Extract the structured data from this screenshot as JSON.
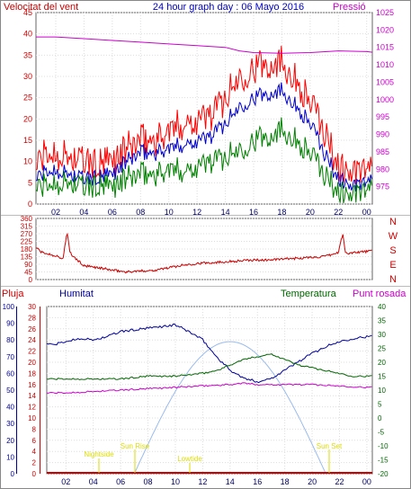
{
  "header": {
    "title": "24 hour graph day : 06 Mayo 2016",
    "wind_label": "Velocitat del vent",
    "pressure_label": "Pressió"
  },
  "direction_letters": [
    "N",
    "W",
    "S",
    "E",
    "N"
  ],
  "lower_labels": {
    "rain": "Pluja",
    "humidity": "Humitat",
    "temperature": "Temperatura",
    "dewpoint": "Punt rosada"
  },
  "annotations": {
    "nightside": "Nightside",
    "sunrise": "Sun Rise",
    "lowtide": "Lowtide",
    "sunset": "Sun Set"
  },
  "colors": {
    "gust": "#ff0000",
    "wind_avg": "#0000cc",
    "wind_min": "#008000",
    "pressure": "#cc00cc",
    "direction": "#cc0000",
    "rain": "#cc0000",
    "humidity": "#000099",
    "temperature": "#006600",
    "dewpoint": "#cc00cc",
    "solar": "#99bbee",
    "annotation": "#dddd00"
  },
  "chart_data": [
    {
      "type": "line",
      "x_ticks": [
        "02",
        "04",
        "06",
        "08",
        "10",
        "12",
        "14",
        "16",
        "18",
        "20",
        "22",
        "00"
      ],
      "xlim_hours": [
        0.6,
        24.4
      ],
      "left_axis": {
        "ylim": [
          0,
          45
        ],
        "ticks": [
          0,
          5,
          10,
          15,
          20,
          25,
          30,
          35,
          40,
          45
        ]
      },
      "right_axis": {
        "ylim": [
          970,
          1025
        ],
        "ticks": [
          975,
          980,
          985,
          990,
          995,
          1000,
          1005,
          1010,
          1015,
          1020,
          1025
        ]
      },
      "series": [
        {
          "key": "gust",
          "axis": "left",
          "x": [
            0.6,
            1,
            2,
            3,
            4,
            5,
            6,
            7,
            8,
            9,
            10,
            11,
            12,
            13,
            14,
            15,
            16,
            17,
            18,
            19,
            20,
            21,
            22,
            23,
            24,
            24.4
          ],
          "values": [
            9,
            11,
            12,
            11,
            10,
            9,
            10,
            13,
            15,
            15,
            17,
            19,
            20,
            21,
            25,
            30,
            32,
            33,
            34,
            29,
            24,
            17,
            9,
            7,
            8,
            7
          ]
        },
        {
          "key": "wind_avg",
          "axis": "left",
          "x": [
            0.6,
            1,
            2,
            3,
            4,
            5,
            6,
            7,
            8,
            9,
            10,
            11,
            12,
            13,
            14,
            15,
            16,
            17,
            18,
            19,
            20,
            21,
            22,
            23,
            24,
            24.4
          ],
          "values": [
            6,
            7,
            8,
            7,
            6,
            6,
            7,
            10,
            12,
            12,
            13,
            14,
            15,
            16,
            19,
            23,
            25,
            26,
            27,
            23,
            19,
            12,
            6,
            4,
            5,
            5
          ]
        },
        {
          "key": "wind_min",
          "axis": "left",
          "x": [
            0.6,
            1,
            2,
            3,
            4,
            5,
            6,
            7,
            8,
            9,
            10,
            11,
            12,
            13,
            14,
            15,
            16,
            17,
            18,
            19,
            20,
            21,
            22,
            23,
            24,
            24.4
          ],
          "values": [
            4,
            4,
            5,
            5,
            4,
            4,
            4,
            6,
            7,
            7,
            8,
            8,
            9,
            10,
            11,
            13,
            15,
            16,
            18,
            15,
            12,
            7,
            3,
            2,
            3,
            3
          ]
        },
        {
          "key": "pressure",
          "axis": "right",
          "x": [
            0.6,
            2,
            4,
            6,
            8,
            10,
            12,
            14,
            15,
            16,
            18,
            20,
            22,
            24,
            24.4
          ],
          "values": [
            1018,
            1018,
            1017.5,
            1017,
            1016.5,
            1016,
            1015.5,
            1015,
            1014,
            1013.5,
            1013.3,
            1013.5,
            1014,
            1013.8,
            1013.6
          ]
        }
      ]
    },
    {
      "type": "line",
      "x_ticks": [
        "02",
        "04",
        "06",
        "08",
        "10",
        "12",
        "14",
        "16",
        "18",
        "20",
        "22",
        "00"
      ],
      "xlim_hours": [
        0.6,
        24.4
      ],
      "left_axis": {
        "ylim": [
          0,
          360
        ],
        "ticks": [
          0,
          45,
          90,
          135,
          180,
          225,
          270,
          315,
          360
        ]
      },
      "series": [
        {
          "key": "direction",
          "axis": "left",
          "x": [
            0.6,
            1,
            1.5,
            2,
            2.5,
            2.8,
            3,
            3.3,
            3.6,
            4,
            5,
            6,
            7,
            8,
            9,
            10,
            11,
            12,
            13,
            14,
            15,
            16,
            17,
            18,
            19,
            20,
            21,
            21.7,
            22,
            22.3,
            22.5,
            22.7,
            23,
            24,
            24.4
          ],
          "values": [
            190,
            160,
            150,
            140,
            120,
            280,
            160,
            130,
            110,
            80,
            70,
            55,
            45,
            50,
            55,
            70,
            85,
            95,
            100,
            105,
            110,
            115,
            115,
            120,
            125,
            130,
            135,
            150,
            160,
            270,
            160,
            150,
            160,
            165,
            170
          ]
        }
      ]
    },
    {
      "type": "line",
      "x_ticks": [
        "02",
        "04",
        "06",
        "08",
        "10",
        "12",
        "14",
        "16",
        "18",
        "20",
        "22",
        "00"
      ],
      "xlim_hours": [
        0.6,
        24.4
      ],
      "rain_axis": {
        "ylim": [
          0,
          30
        ],
        "ticks": [
          0,
          2,
          4,
          6,
          8,
          10,
          12,
          14,
          16,
          18,
          20,
          22,
          24,
          26,
          28,
          30
        ]
      },
      "humidity_axis": {
        "ylim": [
          0,
          100
        ],
        "ticks": [
          0,
          10,
          20,
          30,
          40,
          50,
          60,
          70,
          80,
          90,
          100
        ]
      },
      "temperature_axis": {
        "ylim": [
          -20,
          40
        ],
        "ticks": [
          -20,
          -15,
          -10,
          -5,
          0,
          5,
          10,
          15,
          20,
          25,
          30,
          35,
          40
        ]
      },
      "series": [
        {
          "key": "humidity",
          "axis": "humidity",
          "x": [
            0.6,
            1,
            2,
            3,
            4,
            5,
            6,
            7,
            8,
            9,
            10,
            11,
            12,
            13,
            14,
            15,
            16,
            17,
            18,
            19,
            20,
            21,
            22,
            23,
            24,
            24.4
          ],
          "values": [
            78,
            77,
            79,
            81,
            80,
            82,
            85,
            86,
            87,
            88,
            89,
            85,
            80,
            70,
            62,
            57,
            55,
            57,
            62,
            67,
            72,
            76,
            79,
            81,
            82,
            82
          ]
        },
        {
          "key": "temperature",
          "axis": "temperature",
          "x": [
            0.6,
            2,
            4,
            6,
            7,
            8,
            9,
            10,
            11,
            12,
            13,
            14,
            15,
            16,
            17,
            18,
            19,
            20,
            21,
            22,
            23,
            24,
            24.4
          ],
          "values": [
            14,
            14,
            14,
            14,
            14.5,
            15,
            15,
            15,
            15.5,
            16,
            17,
            19,
            21,
            22,
            23,
            21,
            19,
            18,
            17,
            16,
            15,
            15,
            15
          ]
        },
        {
          "key": "dewpoint",
          "axis": "temperature",
          "x": [
            0.6,
            2,
            4,
            6,
            8,
            10,
            12,
            14,
            15,
            16,
            18,
            20,
            22,
            24,
            24.4
          ],
          "values": [
            9,
            9,
            9.5,
            10,
            10.5,
            11,
            11.5,
            12,
            12.5,
            12,
            12,
            12,
            11.5,
            11,
            11
          ]
        },
        {
          "key": "rain",
          "axis": "rain",
          "x": [
            0.6,
            24.4
          ],
          "values": [
            0,
            0
          ]
        }
      ]
    }
  ]
}
